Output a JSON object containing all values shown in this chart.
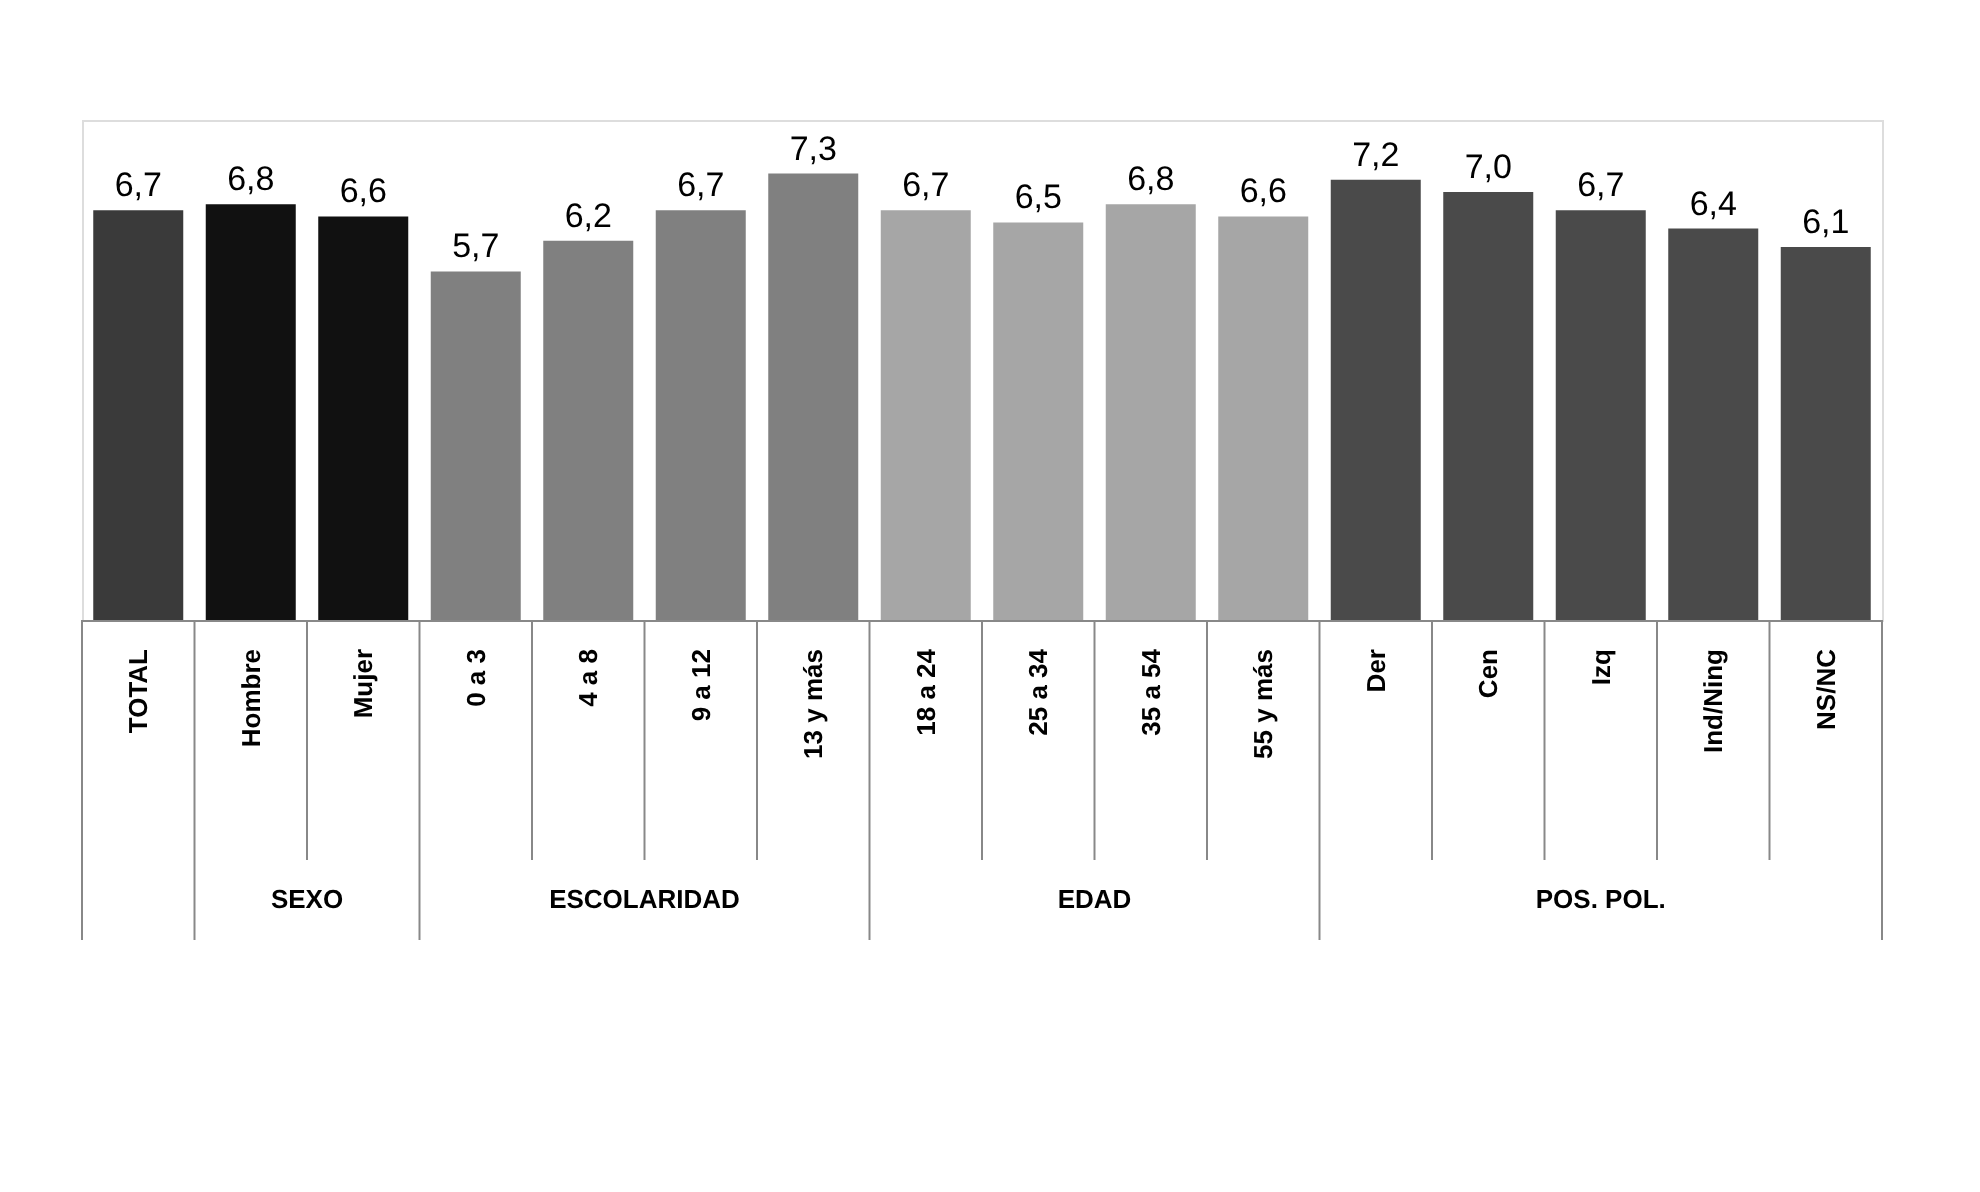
{
  "chart_data": {
    "type": "bar",
    "categories": [
      "TOTAL",
      "Hombre",
      "Mujer",
      "0 a 3",
      "4 a 8",
      "9 a 12",
      "13 y más",
      "18 a 24",
      "25 a 34",
      "35 a 54",
      "55 y más",
      "Der",
      "Cen",
      "Izq",
      "Ind/Ning",
      "NS/NC"
    ],
    "values": [
      6.7,
      6.8,
      6.6,
      5.7,
      6.2,
      6.7,
      7.3,
      6.7,
      6.5,
      6.8,
      6.6,
      7.2,
      7.0,
      6.7,
      6.4,
      6.1
    ],
    "colors": [
      "#3a3a3a",
      "#111111",
      "#111111",
      "#808080",
      "#808080",
      "#808080",
      "#808080",
      "#a6a6a6",
      "#a6a6a6",
      "#a6a6a6",
      "#a6a6a6",
      "#4a4a4a",
      "#4a4a4a",
      "#4a4a4a",
      "#4a4a4a",
      "#4a4a4a"
    ],
    "value_labels": [
      "6,7",
      "6,8",
      "6,6",
      "5,7",
      "6,2",
      "6,7",
      "7,3",
      "6,7",
      "6,5",
      "6,8",
      "6,6",
      "7,2",
      "7,0",
      "6,7",
      "6,4",
      "6,1"
    ],
    "annotations": [
      "SEXO",
      "ESCOLARIDAD",
      "EDAD",
      "POS. POL."
    ]
  }
}
